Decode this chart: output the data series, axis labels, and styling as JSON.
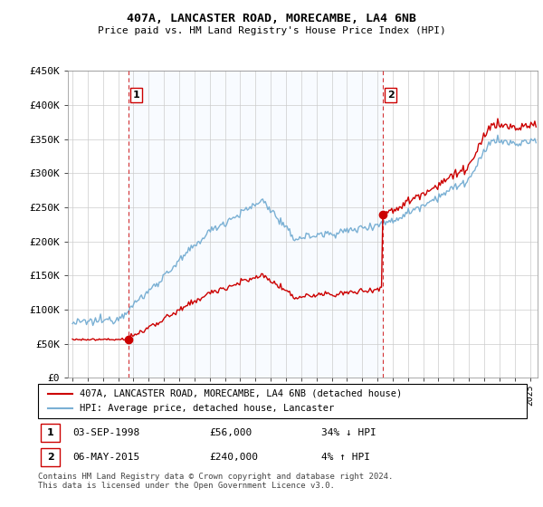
{
  "title": "407A, LANCASTER ROAD, MORECAMBE, LA4 6NB",
  "subtitle": "Price paid vs. HM Land Registry's House Price Index (HPI)",
  "sale1_date": "03-SEP-1998",
  "sale1_price": 56000,
  "sale1_pct": "34% ↓ HPI",
  "sale2_date": "06-MAY-2015",
  "sale2_price": 240000,
  "sale2_pct": "4% ↑ HPI",
  "legend_label1": "407A, LANCASTER ROAD, MORECAMBE, LA4 6NB (detached house)",
  "legend_label2": "HPI: Average price, detached house, Lancaster",
  "footer": "Contains HM Land Registry data © Crown copyright and database right 2024.\nThis data is licensed under the Open Government Licence v3.0.",
  "property_color": "#cc0000",
  "hpi_color": "#7ab0d4",
  "shade_color": "#ddeeff",
  "vline_color": "#cc0000",
  "ylim_min": 0,
  "ylim_max": 450000,
  "yticks": [
    0,
    50000,
    100000,
    150000,
    200000,
    250000,
    300000,
    350000,
    400000,
    450000
  ],
  "ytick_labels": [
    "£0",
    "£50K",
    "£100K",
    "£150K",
    "£200K",
    "£250K",
    "£300K",
    "£350K",
    "£400K",
    "£450K"
  ],
  "xmin": 1994.7,
  "xmax": 2025.5,
  "sale1_year": 1998.67,
  "sale2_year": 2015.33
}
